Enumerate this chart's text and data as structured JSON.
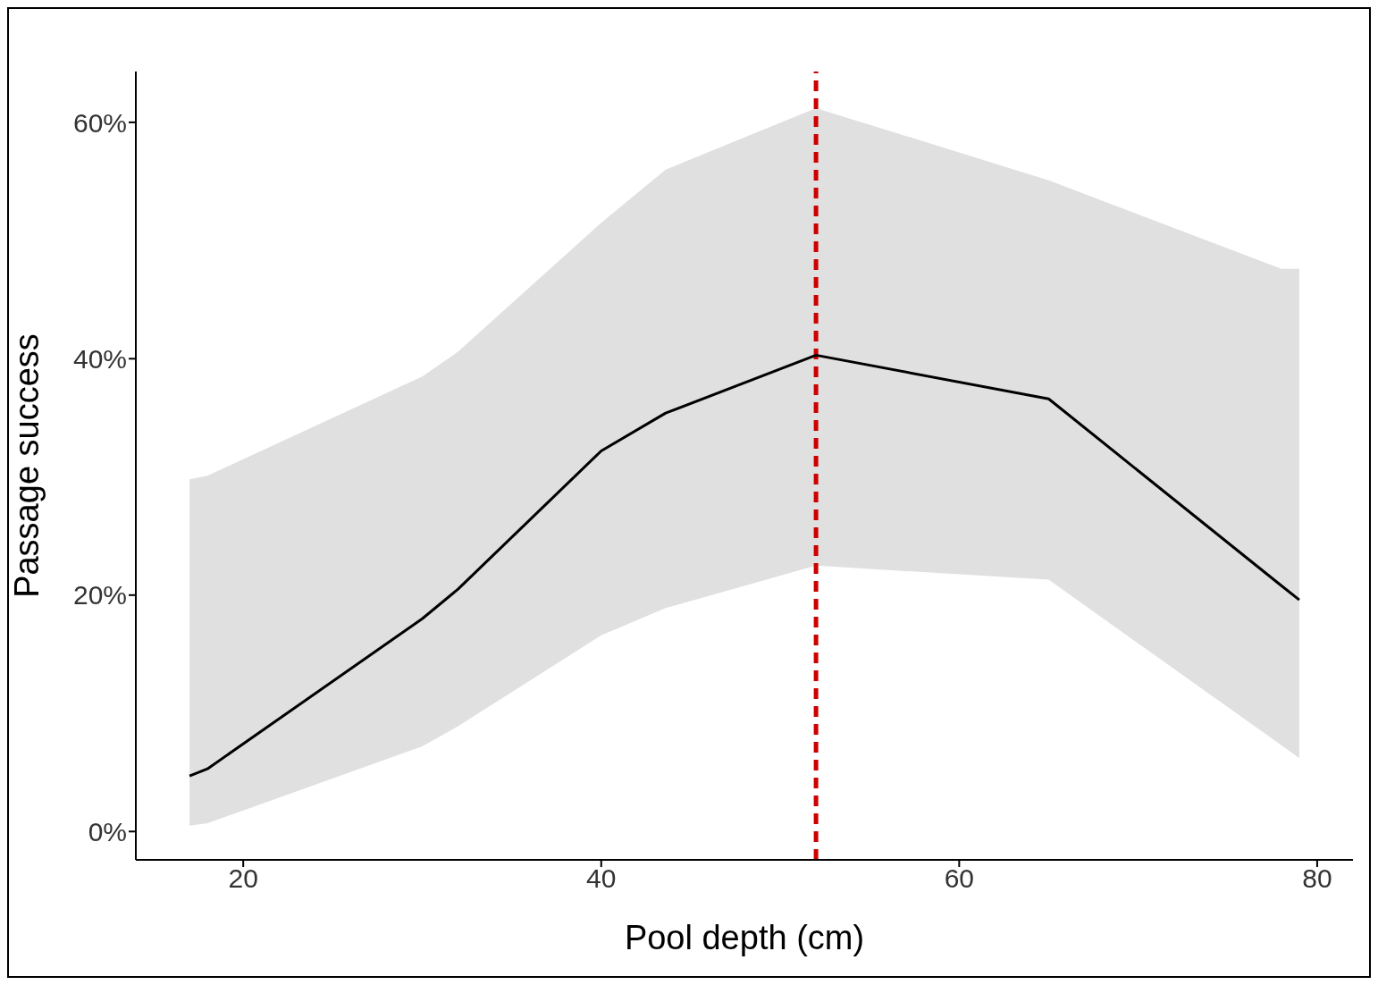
{
  "chart_data": {
    "type": "line",
    "xlabel": "Pool depth (cm)",
    "ylabel": "Passage success",
    "x": [
      17,
      18,
      30,
      32,
      40,
      43.6,
      52,
      65,
      78,
      79
    ],
    "series": [
      {
        "color": "#000000",
        "values": [
          4.7,
          5.3,
          18,
          20.5,
          32.2,
          35.4,
          40.3,
          36.6,
          20.8,
          19.6
        ],
        "lower": [
          0.5,
          0.7,
          7.2,
          8.9,
          16.6,
          18.9,
          22.5,
          21.3,
          7.3,
          6.2
        ],
        "upper": [
          29.8,
          30.1,
          38.5,
          40.6,
          51.5,
          56,
          61.2,
          55.1,
          47.6,
          47.6
        ]
      }
    ],
    "xlim": [
      14,
      82
    ],
    "xticks": [
      20,
      40,
      60,
      80
    ],
    "ylim": [
      -2.4,
      64.3
    ],
    "yticks": [
      {
        "value": 0,
        "label": "0%"
      },
      {
        "value": 20,
        "label": "20%"
      },
      {
        "value": 40,
        "label": "40%"
      },
      {
        "value": 60,
        "label": "60%"
      }
    ],
    "ref_lines": [
      {
        "axis": "x",
        "value": 52,
        "color": "#cc0000",
        "line_style": "dashed"
      }
    ],
    "grid": false,
    "marker": "none",
    "line_style": "solid"
  }
}
